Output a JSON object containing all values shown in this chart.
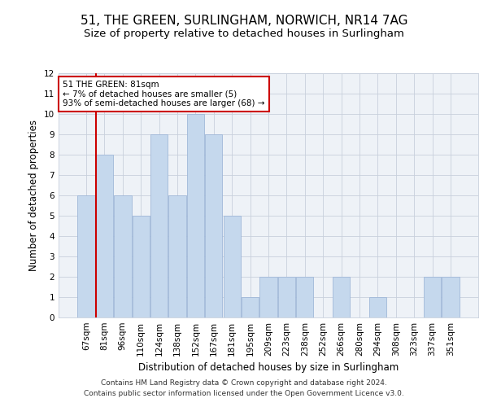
{
  "title": "51, THE GREEN, SURLINGHAM, NORWICH, NR14 7AG",
  "subtitle": "Size of property relative to detached houses in Surlingham",
  "xlabel": "Distribution of detached houses by size in Surlingham",
  "ylabel": "Number of detached properties",
  "categories": [
    "67sqm",
    "81sqm",
    "96sqm",
    "110sqm",
    "124sqm",
    "138sqm",
    "152sqm",
    "167sqm",
    "181sqm",
    "195sqm",
    "209sqm",
    "223sqm",
    "238sqm",
    "252sqm",
    "266sqm",
    "280sqm",
    "294sqm",
    "308sqm",
    "323sqm",
    "337sqm",
    "351sqm"
  ],
  "values": [
    6,
    8,
    6,
    5,
    9,
    6,
    10,
    9,
    5,
    1,
    2,
    2,
    2,
    0,
    2,
    0,
    1,
    0,
    0,
    2,
    2
  ],
  "bar_color": "#c5d8ed",
  "bar_edge_color": "#a0b8d8",
  "vline_color": "#cc0000",
  "vline_bar_index": 1,
  "ylim": [
    0,
    12
  ],
  "yticks": [
    0,
    1,
    2,
    3,
    4,
    5,
    6,
    7,
    8,
    9,
    10,
    11,
    12
  ],
  "annotation_text": "51 THE GREEN: 81sqm\n← 7% of detached houses are smaller (5)\n93% of semi-detached houses are larger (68) →",
  "annotation_box_color": "#ffffff",
  "annotation_box_edge_color": "#cc0000",
  "footer_line1": "Contains HM Land Registry data © Crown copyright and database right 2024.",
  "footer_line2": "Contains public sector information licensed under the Open Government Licence v3.0.",
  "background_color": "#eef2f7",
  "grid_color": "#c8d0dc",
  "title_fontsize": 11,
  "subtitle_fontsize": 9.5,
  "axis_label_fontsize": 8.5,
  "tick_fontsize": 7.5,
  "annotation_fontsize": 7.5,
  "footer_fontsize": 6.5
}
